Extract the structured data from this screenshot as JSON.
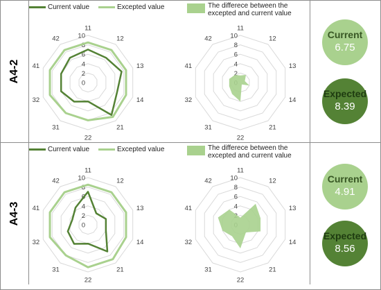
{
  "colors": {
    "current": "#548235",
    "expected": "#a9d18e",
    "difference": "#a9d18e",
    "grid": "#d9d9d9"
  },
  "legend": {
    "current": "Current value",
    "expected": "Excepted value",
    "difference_line1": "The differece between the",
    "difference_line2": "excepted and current value"
  },
  "summary_labels": {
    "current": "Current",
    "expected": "Expected"
  },
  "rows": [
    {
      "label": "A4-2",
      "current_score": "6.75",
      "expected_score": "8.39"
    },
    {
      "label": "A4-3",
      "current_score": "4.91",
      "expected_score": "8.56"
    }
  ],
  "chart_data": [
    {
      "type": "radar",
      "panel": "A4-2 values",
      "categories": [
        "11",
        "12",
        "13",
        "14",
        "21",
        "22",
        "31",
        "32",
        "41",
        "42"
      ],
      "rticks": [
        "0",
        "2",
        "4",
        "6",
        "8",
        "10"
      ],
      "rlim": [
        0,
        10
      ],
      "series": [
        {
          "name": "Current value",
          "values": [
            7,
            6.5,
            7.5,
            6.5,
            8.5,
            4,
            5,
            6,
            6,
            6.5
          ]
        },
        {
          "name": "Excepted value",
          "values": [
            8.5,
            8.5,
            8.5,
            8.5,
            9,
            8,
            8,
            8.5,
            8.5,
            8.5
          ]
        }
      ]
    },
    {
      "type": "radar",
      "panel": "A4-2 difference",
      "categories": [
        "11",
        "12",
        "13",
        "14",
        "21",
        "22",
        "31",
        "32",
        "41",
        "42"
      ],
      "rticks": [
        "0",
        "2",
        "4",
        "6",
        "8",
        "10"
      ],
      "rlim": [
        0,
        10
      ],
      "series": [
        {
          "name": "The differece between the excepted and current value",
          "values": [
            1.5,
            2,
            1,
            2,
            0.5,
            4,
            3,
            2.5,
            2.5,
            2
          ]
        }
      ]
    },
    {
      "type": "radar",
      "panel": "A4-3 values",
      "categories": [
        "11",
        "12",
        "13",
        "14",
        "21",
        "22",
        "31",
        "32",
        "41",
        "42"
      ],
      "rticks": [
        "0",
        "2",
        "4",
        "6",
        "8",
        "10"
      ],
      "rlim": [
        0,
        10
      ],
      "series": [
        {
          "name": "Current value",
          "values": [
            7,
            3,
            4,
            4,
            7,
            4,
            5,
            4.5,
            3.5,
            4.5
          ]
        },
        {
          "name": "Excepted value",
          "values": [
            8.5,
            8.5,
            8.5,
            8.5,
            9,
            9,
            8,
            8.5,
            8.5,
            8.5
          ]
        }
      ]
    },
    {
      "type": "radar",
      "panel": "A4-3 difference",
      "categories": [
        "11",
        "12",
        "13",
        "14",
        "21",
        "22",
        "31",
        "32",
        "41",
        "42"
      ],
      "rticks": [
        "0",
        "2",
        "4",
        "6",
        "8",
        "10"
      ],
      "rlim": [
        0,
        10
      ],
      "series": [
        {
          "name": "The differece between the excepted and current value",
          "values": [
            1.5,
            5.5,
            4.5,
            4.5,
            2,
            5,
            3,
            4,
            5,
            4
          ]
        }
      ]
    }
  ]
}
